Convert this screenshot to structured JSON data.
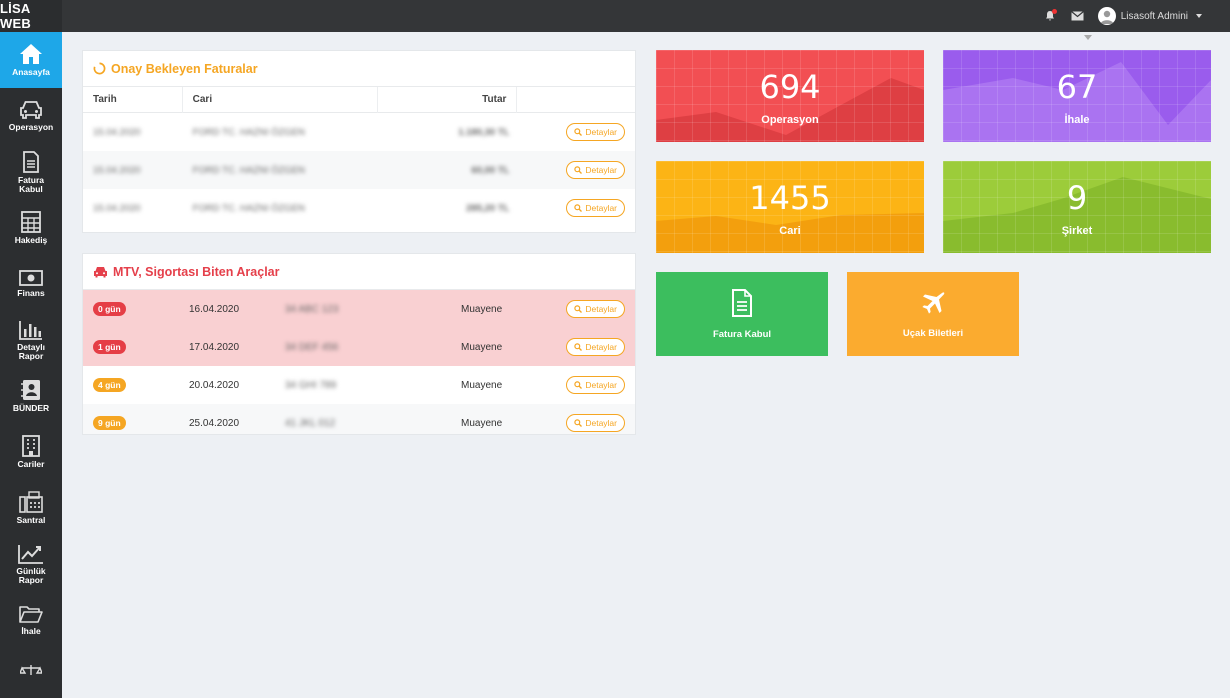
{
  "app": {
    "brand": "LİSA WEB"
  },
  "topbar": {
    "user_name": "Lisasoft Admini"
  },
  "sidebar": {
    "items": [
      {
        "label": "Anasayfa",
        "icon": "home-icon",
        "active": true
      },
      {
        "label": "Operasyon",
        "icon": "car-icon"
      },
      {
        "label": "Fatura\nKabul",
        "icon": "document-icon"
      },
      {
        "label": "Hakediş",
        "icon": "calculator-icon"
      },
      {
        "label": "Finans",
        "icon": "money-icon"
      },
      {
        "label": "Detaylı\nRapor",
        "icon": "bar-chart-icon"
      },
      {
        "label": "BÜNDER",
        "icon": "contact-book-icon"
      },
      {
        "label": "Cariler",
        "icon": "building-icon"
      },
      {
        "label": "Santral",
        "icon": "fax-icon"
      },
      {
        "label": "Günlük\nRapor",
        "icon": "line-chart-icon"
      },
      {
        "label": "İhale",
        "icon": "folder-icon"
      }
    ]
  },
  "invoices": {
    "title": "Onay Bekleyen Faturalar",
    "columns": [
      "Tarih",
      "Cari",
      "Tutar"
    ],
    "rows": [
      {
        "date": "15.04.2020",
        "cari": "FORD TC. HAZNI ÖZGEN",
        "amount": "1.180,30 TL",
        "action": "Detaylar"
      },
      {
        "date": "15.04.2020",
        "cari": "FORD TC. HAZNI ÖZGEN",
        "amount": "60,00 TL",
        "action": "Detaylar"
      },
      {
        "date": "15.04.2020",
        "cari": "FORD TC. HAZNI ÖZGEN",
        "amount": "285,20 TL",
        "action": "Detaylar"
      }
    ]
  },
  "vehicles": {
    "title": "MTV, Sigortası Biten Araçlar",
    "rows": [
      {
        "days": "0 gün",
        "date": "16.04.2020",
        "plate": "34 ABC 123",
        "type": "Muayene",
        "action": "Detaylar",
        "severity": "red"
      },
      {
        "days": "1 gün",
        "date": "17.04.2020",
        "plate": "34 DEF 456",
        "type": "Muayene",
        "action": "Detaylar",
        "severity": "red"
      },
      {
        "days": "4 gün",
        "date": "20.04.2020",
        "plate": "34 GHI 789",
        "type": "Muayene",
        "action": "Detaylar",
        "severity": "orange"
      },
      {
        "days": "9 gün",
        "date": "25.04.2020",
        "plate": "41 JKL 012",
        "type": "Muayene",
        "action": "Detaylar",
        "severity": "orange"
      }
    ]
  },
  "stats": [
    {
      "value": "694",
      "label": "Operasyon",
      "color": "#f24f53"
    },
    {
      "value": "67",
      "label": "İhale",
      "color": "#9a5ced"
    },
    {
      "value": "1455",
      "label": "Cari",
      "color": "#fcb415"
    },
    {
      "value": "9",
      "label": "Şirket",
      "color": "#9ccc3a"
    }
  ],
  "actions": [
    {
      "label": "Fatura Kabul",
      "icon": "document-icon",
      "color": "#3cbe5e"
    },
    {
      "label": "Uçak Biletleri",
      "icon": "plane-icon",
      "color": "#fbab2f"
    }
  ],
  "colors": {
    "accent": "#1ea7e8",
    "warning": "#f5a623",
    "danger": "#e5404b"
  }
}
